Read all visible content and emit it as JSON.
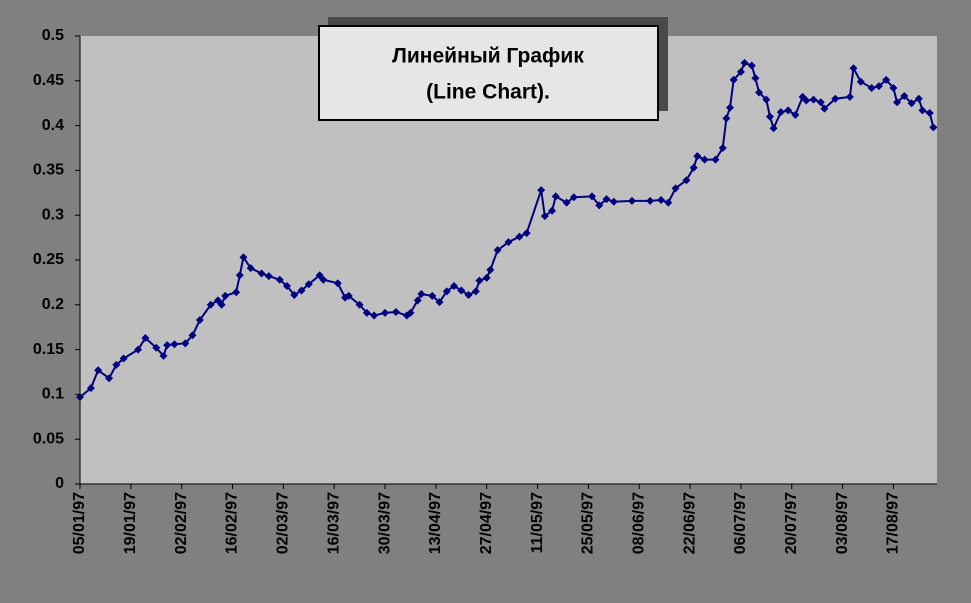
{
  "chart_data": {
    "type": "line",
    "title": [
      "Линейный График",
      "(Line Chart)."
    ],
    "x": [
      "1997-01-05",
      "1997-01-08",
      "1997-01-10",
      "1997-01-13",
      "1997-01-15",
      "1997-01-17",
      "1997-01-21",
      "1997-01-23",
      "1997-01-26",
      "1997-01-28",
      "1997-01-29",
      "1997-01-31",
      "1997-02-03",
      "1997-02-05",
      "1997-02-07",
      "1997-02-10",
      "1997-02-12",
      "1997-02-13",
      "1997-02-14",
      "1997-02-17",
      "1997-02-18",
      "1997-02-19",
      "1997-02-21",
      "1997-02-24",
      "1997-02-26",
      "1997-03-01",
      "1997-03-03",
      "1997-03-05",
      "1997-03-07",
      "1997-03-09",
      "1997-03-12",
      "1997-03-13",
      "1997-03-17",
      "1997-03-19",
      "1997-03-20",
      "1997-03-23",
      "1997-03-25",
      "1997-03-27",
      "1997-03-30",
      "1997-04-02",
      "1997-04-05",
      "1997-04-06",
      "1997-04-08",
      "1997-04-09",
      "1997-04-12",
      "1997-04-14",
      "1997-04-16",
      "1997-04-18",
      "1997-04-20",
      "1997-04-22",
      "1997-04-24",
      "1997-04-25",
      "1997-04-27",
      "1997-04-28",
      "1997-04-30",
      "1997-05-03",
      "1997-05-06",
      "1997-05-08",
      "1997-05-12",
      "1997-05-13",
      "1997-05-15",
      "1997-05-16",
      "1997-05-19",
      "1997-05-21",
      "1997-05-26",
      "1997-05-28",
      "1997-05-30",
      "1997-06-01",
      "1997-06-06",
      "1997-06-11",
      "1997-06-14",
      "1997-06-16",
      "1997-06-18",
      "1997-06-21",
      "1997-06-23",
      "1997-06-24",
      "1997-06-26",
      "1997-06-29",
      "1997-07-01",
      "1997-07-02",
      "1997-07-03",
      "1997-07-04",
      "1997-07-06",
      "1997-07-07",
      "1997-07-09",
      "1997-07-10",
      "1997-07-11",
      "1997-07-13",
      "1997-07-14",
      "1997-07-15",
      "1997-07-17",
      "1997-07-19",
      "1997-07-21",
      "1997-07-23",
      "1997-07-24",
      "1997-07-26",
      "1997-07-28",
      "1997-07-29",
      "1997-08-01",
      "1997-08-05",
      "1997-08-06",
      "1997-08-08",
      "1997-08-11",
      "1997-08-13",
      "1997-08-15",
      "1997-08-17",
      "1997-08-18",
      "1997-08-20",
      "1997-08-22",
      "1997-08-24",
      "1997-08-25",
      "1997-08-27",
      "1997-08-28"
    ],
    "series": [
      {
        "color": "#000080",
        "values": [
          0.097,
          0.107,
          0.127,
          0.118,
          0.133,
          0.14,
          0.15,
          0.163,
          0.152,
          0.143,
          0.155,
          0.156,
          0.157,
          0.166,
          0.183,
          0.2,
          0.205,
          0.2,
          0.21,
          0.214,
          0.233,
          0.253,
          0.241,
          0.235,
          0.232,
          0.228,
          0.221,
          0.211,
          0.216,
          0.223,
          0.233,
          0.228,
          0.224,
          0.208,
          0.21,
          0.2,
          0.191,
          0.188,
          0.191,
          0.192,
          0.188,
          0.191,
          0.205,
          0.212,
          0.21,
          0.203,
          0.215,
          0.221,
          0.216,
          0.211,
          0.215,
          0.227,
          0.23,
          0.239,
          0.261,
          0.27,
          0.276,
          0.28,
          0.328,
          0.299,
          0.305,
          0.321,
          0.314,
          0.32,
          0.321,
          0.311,
          0.318,
          0.315,
          0.316,
          0.316,
          0.317,
          0.314,
          0.33,
          0.339,
          0.353,
          0.366,
          0.362,
          0.362,
          0.375,
          0.408,
          0.42,
          0.451,
          0.46,
          0.47,
          0.467,
          0.453,
          0.437,
          0.429,
          0.41,
          0.397,
          0.415,
          0.417,
          0.412,
          0.432,
          0.428,
          0.429,
          0.426,
          0.419,
          0.43,
          0.432,
          0.464,
          0.449,
          0.442,
          0.444,
          0.451,
          0.442,
          0.426,
          0.433,
          0.425,
          0.43,
          0.417,
          0.414,
          0.398
        ]
      }
    ],
    "xlim": [
      "1997-01-05",
      "1997-08-29"
    ],
    "xticks": [
      {
        "value": "1997-01-05",
        "label": "05/01/97"
      },
      {
        "value": "1997-01-19",
        "label": "19/01/97"
      },
      {
        "value": "1997-02-02",
        "label": "02/02/97"
      },
      {
        "value": "1997-02-16",
        "label": "16/02/97"
      },
      {
        "value": "1997-03-02",
        "label": "02/03/97"
      },
      {
        "value": "1997-03-16",
        "label": "16/03/97"
      },
      {
        "value": "1997-03-30",
        "label": "30/03/97"
      },
      {
        "value": "1997-04-13",
        "label": "13/04/97"
      },
      {
        "value": "1997-04-27",
        "label": "27/04/97"
      },
      {
        "value": "1997-05-11",
        "label": "11/05/97"
      },
      {
        "value": "1997-05-25",
        "label": "25/05/97"
      },
      {
        "value": "1997-06-08",
        "label": "08/06/97"
      },
      {
        "value": "1997-06-22",
        "label": "22/06/97"
      },
      {
        "value": "1997-07-06",
        "label": "06/07/97"
      },
      {
        "value": "1997-07-20",
        "label": "20/07/97"
      },
      {
        "value": "1997-08-03",
        "label": "03/08/97"
      },
      {
        "value": "1997-08-17",
        "label": "17/08/97"
      }
    ],
    "ylim": [
      0,
      0.5
    ],
    "yticks": [
      0,
      0.05,
      0.1,
      0.15,
      0.2,
      0.25,
      0.3,
      0.35,
      0.4,
      0.45,
      0.5
    ],
    "grid": false
  }
}
